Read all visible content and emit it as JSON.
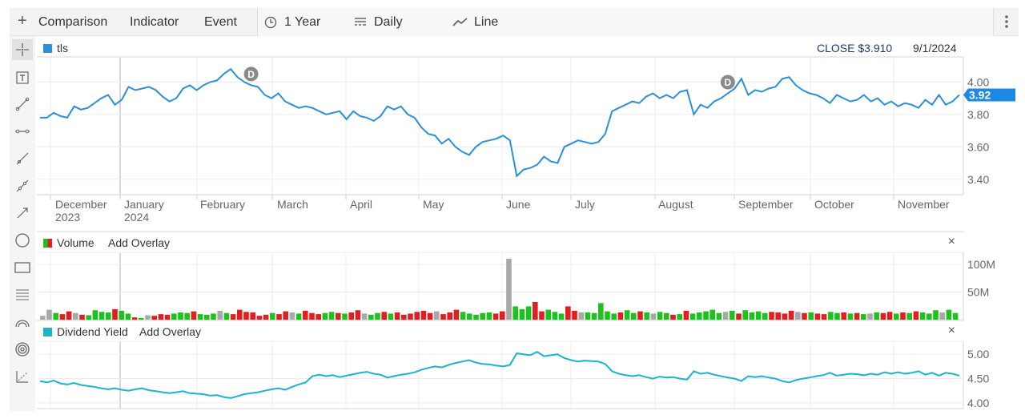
{
  "toolbar": {
    "add_icon": "plus-icon",
    "comparison": "Comparison",
    "indicator": "Indicator",
    "event": "Event",
    "range": "1 Year",
    "interval": "Daily",
    "chart_style": "Line",
    "range_icon": "clock-icon",
    "interval_icon": "bar-lines-icon",
    "style_icon": "line-chart-icon",
    "menu_icon": "kebab-menu-icon"
  },
  "sidebar": {
    "tools": [
      "crosshair-icon",
      "text-tool-icon",
      "line-segment-icon",
      "horizontal-line-icon",
      "ray-icon",
      "extended-line-icon",
      "arrow-line-icon",
      "circle-icon",
      "rectangle-icon",
      "fibonacci-icon",
      "arc-icon",
      "target-icon",
      "trend-measure-icon"
    ]
  },
  "main": {
    "symbol": "tls",
    "close_label": "CLOSE",
    "close_value": "$3.910",
    "date": "9/1/2024",
    "last_price": "3.92",
    "dividend_marker": "D",
    "colors": {
      "price_line": "#2b8fd9",
      "badge": "#1e88e5",
      "marker": "#8a8a8a"
    }
  },
  "volume": {
    "title": "Volume",
    "add_overlay": "Add Overlay",
    "close": "×",
    "colors": {
      "up": "#1ec21e",
      "down": "#e02020",
      "flat": "#a8a8a8"
    }
  },
  "dividend_yield": {
    "title": "Dividend Yield",
    "add_overlay": "Add Overlay",
    "close": "×",
    "color": "#1bb5c9"
  },
  "chart_data": [
    {
      "type": "line",
      "title": "",
      "series": [
        {
          "name": "tls",
          "values": [
            3.78,
            3.78,
            3.81,
            3.79,
            3.78,
            3.85,
            3.83,
            3.84,
            3.87,
            3.9,
            3.92,
            3.86,
            3.89,
            3.97,
            3.95,
            3.96,
            3.97,
            3.95,
            3.91,
            3.88,
            3.9,
            3.96,
            3.98,
            3.95,
            3.98,
            4.0,
            4.01,
            4.05,
            4.08,
            4.03,
            4.0,
            3.98,
            3.97,
            3.92,
            3.9,
            3.93,
            3.88,
            3.86,
            3.84,
            3.85,
            3.84,
            3.82,
            3.8,
            3.81,
            3.82,
            3.77,
            3.82,
            3.79,
            3.78,
            3.76,
            3.79,
            3.85,
            3.83,
            3.85,
            3.8,
            3.78,
            3.72,
            3.68,
            3.67,
            3.62,
            3.65,
            3.6,
            3.57,
            3.55,
            3.6,
            3.63,
            3.64,
            3.65,
            3.67,
            3.64,
            3.42,
            3.46,
            3.47,
            3.49,
            3.54,
            3.51,
            3.5,
            3.6,
            3.62,
            3.64,
            3.63,
            3.62,
            3.63,
            3.68,
            3.82,
            3.84,
            3.86,
            3.88,
            3.87,
            3.91,
            3.93,
            3.9,
            3.92,
            3.9,
            3.94,
            3.95,
            3.8,
            3.86,
            3.84,
            3.88,
            3.9,
            3.93,
            3.96,
            4.02,
            3.92,
            3.95,
            3.94,
            3.96,
            3.97,
            4.02,
            4.03,
            3.98,
            3.95,
            3.93,
            3.92,
            3.9,
            3.87,
            3.92,
            3.9,
            3.88,
            3.89,
            3.92,
            3.88,
            3.9,
            3.86,
            3.88,
            3.85,
            3.87,
            3.86,
            3.84,
            3.89,
            3.86,
            3.92,
            3.86,
            3.88,
            3.92
          ]
        }
      ],
      "x_tick_labels": [
        "December",
        "2023",
        "January",
        "2024",
        "February",
        "March",
        "April",
        "May",
        "June",
        "July",
        "August",
        "September",
        "October",
        "November"
      ],
      "y_tick_labels": [
        "4.00",
        "3.80",
        "3.60",
        "3.40"
      ],
      "ylim": [
        3.31,
        4.15
      ],
      "last_value": 3.92,
      "dividend_markers_at_index": [
        31,
        101
      ]
    },
    {
      "type": "bar",
      "title": "Volume",
      "y_tick_labels": [
        "100M",
        "50M"
      ],
      "ylim": [
        0,
        120
      ],
      "unit": "M",
      "values": [
        7,
        18,
        12,
        10,
        15,
        12,
        9,
        8,
        17,
        14,
        13,
        19,
        16,
        11,
        4,
        3,
        8,
        7,
        10,
        9,
        11,
        13,
        12,
        15,
        10,
        9,
        11,
        16,
        12,
        10,
        18,
        14,
        13,
        7,
        9,
        12,
        10,
        15,
        13,
        11,
        16,
        12,
        10,
        12,
        14,
        12,
        11,
        13,
        17,
        11,
        9,
        12,
        14,
        11,
        13,
        9,
        11,
        14,
        16,
        12,
        15,
        10,
        13,
        18,
        14,
        11,
        9,
        12,
        13,
        11,
        15,
        110,
        24,
        19,
        24,
        32,
        15,
        18,
        14,
        11,
        24,
        16,
        13,
        13,
        12,
        30,
        15,
        11,
        13,
        17,
        12,
        15,
        13,
        11,
        14,
        12,
        9,
        10,
        16,
        11,
        13,
        15,
        18,
        12,
        14,
        16,
        11,
        17,
        13,
        15,
        12,
        14,
        13,
        11,
        16,
        14,
        12,
        13,
        11,
        10,
        14,
        12,
        13,
        11,
        12,
        10,
        11,
        13,
        12,
        14,
        11,
        13,
        12,
        15,
        13,
        11,
        17,
        13,
        18,
        12
      ],
      "colors_per_bar_seed": "up/down alternating"
    },
    {
      "type": "line",
      "title": "Dividend Yield",
      "series": [
        {
          "name": "Dividend Yield",
          "values": [
            4.45,
            4.42,
            4.46,
            4.4,
            4.38,
            4.41,
            4.37,
            4.35,
            4.33,
            4.3,
            4.28,
            4.3,
            4.27,
            4.25,
            4.28,
            4.3,
            4.26,
            4.24,
            4.22,
            4.2,
            4.22,
            4.24,
            4.2,
            4.19,
            4.18,
            4.15,
            4.16,
            4.12,
            4.1,
            4.14,
            4.18,
            4.2,
            4.22,
            4.25,
            4.28,
            4.3,
            4.27,
            4.33,
            4.38,
            4.42,
            4.55,
            4.58,
            4.55,
            4.57,
            4.53,
            4.56,
            4.59,
            4.62,
            4.64,
            4.6,
            4.58,
            4.52,
            4.55,
            4.58,
            4.6,
            4.63,
            4.68,
            4.72,
            4.75,
            4.73,
            4.78,
            4.82,
            4.85,
            4.88,
            4.83,
            4.8,
            4.79,
            4.77,
            4.75,
            4.78,
            5.02,
            5.0,
            4.98,
            5.05,
            4.96,
            4.98,
            5.0,
            4.92,
            4.88,
            4.85,
            4.87,
            4.86,
            4.85,
            4.8,
            4.65,
            4.6,
            4.57,
            4.55,
            4.57,
            4.53,
            4.5,
            4.54,
            4.52,
            4.53,
            4.5,
            4.48,
            4.65,
            4.6,
            4.62,
            4.58,
            4.55,
            4.52,
            4.5,
            4.45,
            4.55,
            4.53,
            4.55,
            4.52,
            4.5,
            4.45,
            4.42,
            4.47,
            4.5,
            4.52,
            4.55,
            4.57,
            4.62,
            4.56,
            4.58,
            4.6,
            4.59,
            4.57,
            4.6,
            4.58,
            4.63,
            4.6,
            4.63,
            4.6,
            4.62,
            4.65,
            4.58,
            4.62,
            4.56,
            4.62,
            4.6,
            4.56
          ]
        }
      ],
      "y_tick_labels": [
        "5.00",
        "4.50",
        "4.00"
      ],
      "ylim": [
        3.9,
        5.25
      ]
    }
  ]
}
